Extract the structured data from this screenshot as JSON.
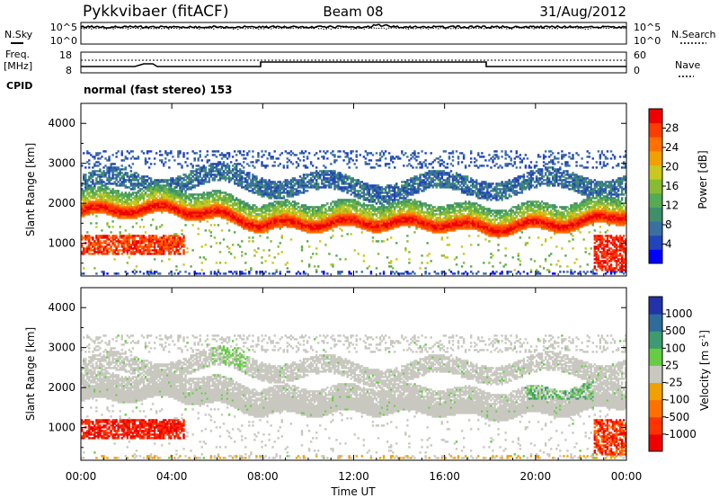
{
  "header": {
    "radar": "Pykkvibaer (fitACF)",
    "beam": "Beam 08",
    "date": "31/Aug/2012"
  },
  "noise_panel": {
    "left_label": "N.Sky",
    "right_label": "N.Search",
    "left_ticks": [
      "10^5",
      "10^0"
    ],
    "right_ticks": [
      "10^5",
      "10^0"
    ]
  },
  "freq_panel": {
    "left_label_1": "Freq.",
    "left_label_2": "[MHz]",
    "left_ticks": [
      "18",
      "8"
    ],
    "right_label": "Nave",
    "right_ticks": [
      "60",
      "0"
    ],
    "cpid_label": "CPID",
    "cpid_text": "normal (fast stereo) 153"
  },
  "chart_data": [
    {
      "type": "heatmap",
      "name": "power",
      "ylabel": "Slant Range [km]",
      "yticks": [
        "4000",
        "3000",
        "2000",
        "1000"
      ],
      "ylim": [
        180,
        4500
      ],
      "xlim": [
        0,
        24
      ],
      "colorbar_label": "Power [dB]",
      "colorbar_ticks": [
        "28",
        "24",
        "20",
        "16",
        "12",
        "8",
        "4"
      ],
      "colorbar_colors": [
        "#0000ff",
        "#2244bb",
        "#3a6fa0",
        "#3f8f6a",
        "#55aa55",
        "#88bb33",
        "#c8c820",
        "#f0a000",
        "#ff7000",
        "#ff3c00",
        "#ee0000"
      ],
      "bands": [
        {
          "label": "main echo",
          "range_km_at": [
            [
              0,
              1800
            ],
            [
              4,
              1850
            ],
            [
              6,
              1700
            ],
            [
              8,
              1450
            ],
            [
              12,
              1500
            ],
            [
              16,
              1480
            ],
            [
              18,
              1350
            ],
            [
              20,
              1450
            ],
            [
              22,
              1500
            ],
            [
              24,
              1700
            ]
          ],
          "power_db": 26
        },
        {
          "label": "upper echo",
          "range_km_at": [
            [
              0,
              2450
            ],
            [
              6,
              2600
            ],
            [
              12,
              2350
            ],
            [
              18,
              2450
            ],
            [
              24,
              2500
            ]
          ],
          "power_db": 6
        }
      ]
    },
    {
      "type": "heatmap",
      "name": "velocity",
      "ylabel": "Slant Range [km]",
      "yticks": [
        "4000",
        "3000",
        "2000",
        "1000"
      ],
      "ylim": [
        180,
        4500
      ],
      "xlim": [
        0,
        24
      ],
      "colorbar_label": "Velocity [m s^-1]",
      "colorbar_ticks": [
        "1000",
        "500",
        "100",
        "25",
        "-25",
        "-100",
        "-500",
        "-1000"
      ],
      "colorbar_colors": [
        "#2233aa",
        "#2f6c9a",
        "#3e9a70",
        "#66cc44",
        "#c8c8c0",
        "#f0a000",
        "#ff7000",
        "#ff3300",
        "#ee0000"
      ]
    }
  ],
  "xaxis": {
    "ticks": [
      "00:00",
      "04:00",
      "08:00",
      "12:00",
      "16:00",
      "20:00",
      "00:00"
    ],
    "label": "Time UT"
  }
}
